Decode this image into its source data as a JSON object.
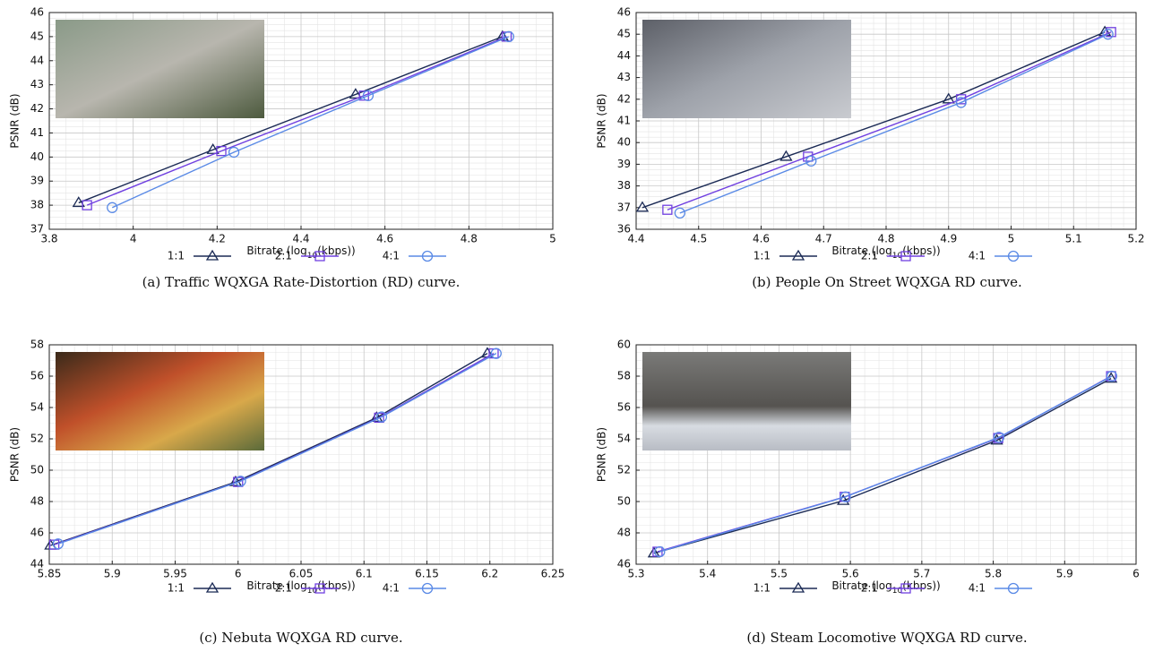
{
  "chart_data": [
    {
      "type": "line",
      "caption": "(a) Traffic WQXGA Rate-Distortion (RD) curve.",
      "x_label": [
        "Bitrate (log",
        "10",
        "(kbps))"
      ],
      "y_label": "PSNR (dB)",
      "xlim": [
        3.8,
        5
      ],
      "xticks": [
        3.8,
        4,
        4.2,
        4.4,
        4.6,
        4.8,
        5
      ],
      "ylim": [
        37,
        46
      ],
      "yticks": [
        37,
        38,
        39,
        40,
        41,
        42,
        43,
        44,
        45,
        46
      ],
      "grid": true,
      "series": [
        {
          "name": "1:1",
          "color": "#1b2a55",
          "marker": "triangle",
          "x": [
            3.87,
            4.19,
            4.53,
            4.88
          ],
          "values": [
            38.1,
            40.3,
            42.6,
            45.0
          ]
        },
        {
          "name": "2:1",
          "color": "#7040e0",
          "marker": "square",
          "x": [
            3.89,
            4.21,
            4.55,
            4.89
          ],
          "values": [
            38.0,
            40.25,
            42.55,
            45.0
          ]
        },
        {
          "name": "4:1",
          "color": "#5a8ae6",
          "marker": "circle",
          "x": [
            3.95,
            4.24,
            4.56,
            4.895
          ],
          "values": [
            37.9,
            40.2,
            42.55,
            45.0
          ]
        }
      ]
    },
    {
      "type": "line",
      "caption": "(b) People On Street WQXGA RD curve.",
      "x_label": [
        "Bitrate (log",
        "10",
        "(kbps))"
      ],
      "y_label": "PSNR (dB)",
      "xlim": [
        4.4,
        5.2
      ],
      "xticks": [
        4.4,
        4.5,
        4.6,
        4.7,
        4.8,
        4.9,
        5,
        5.1,
        5.2
      ],
      "ylim": [
        36,
        46
      ],
      "yticks": [
        36,
        37,
        38,
        39,
        40,
        41,
        42,
        43,
        44,
        45,
        46
      ],
      "grid": true,
      "series": [
        {
          "name": "1:1",
          "color": "#1b2a55",
          "marker": "triangle",
          "x": [
            4.41,
            4.64,
            4.9,
            5.15
          ],
          "values": [
            37.0,
            39.35,
            42.0,
            45.1
          ]
        },
        {
          "name": "2:1",
          "color": "#7040e0",
          "marker": "square",
          "x": [
            4.45,
            4.675,
            4.92,
            5.16
          ],
          "values": [
            36.9,
            39.35,
            42.0,
            45.1
          ]
        },
        {
          "name": "4:1",
          "color": "#5a8ae6",
          "marker": "circle",
          "x": [
            4.47,
            4.68,
            4.92,
            5.155
          ],
          "values": [
            36.75,
            39.15,
            41.85,
            45.0
          ]
        }
      ]
    },
    {
      "type": "line",
      "caption": "(c) Nebuta WQXGA RD curve.",
      "x_label": [
        "Bitrate (log",
        "10",
        "(kbps))"
      ],
      "y_label": "PSNR (dB)",
      "xlim": [
        5.85,
        6.25
      ],
      "xticks": [
        5.85,
        5.9,
        5.95,
        6,
        6.05,
        6.1,
        6.15,
        6.2,
        6.25
      ],
      "ylim": [
        44,
        58
      ],
      "yticks": [
        44,
        46,
        48,
        50,
        52,
        54,
        56,
        58
      ],
      "grid": true,
      "series": [
        {
          "name": "1:1",
          "color": "#1b2a55",
          "marker": "triangle",
          "x": [
            5.851,
            5.998,
            6.11,
            6.198
          ],
          "values": [
            45.2,
            49.25,
            53.35,
            57.45
          ]
        },
        {
          "name": "2:1",
          "color": "#7040e0",
          "marker": "square",
          "x": [
            5.854,
            6.0,
            6.112,
            6.203
          ],
          "values": [
            45.25,
            49.25,
            53.35,
            57.45
          ]
        },
        {
          "name": "4:1",
          "color": "#5a8ae6",
          "marker": "circle",
          "x": [
            5.857,
            6.002,
            6.114,
            6.205
          ],
          "values": [
            45.3,
            49.3,
            53.4,
            57.45
          ]
        }
      ]
    },
    {
      "type": "line",
      "caption": "(d) Steam Locomotive WQXGA RD curve.",
      "x_label": [
        "Bitrate (log",
        "10",
        "(kbps))"
      ],
      "y_label": "PSNR (dB)",
      "xlim": [
        5.3,
        6
      ],
      "xticks": [
        5.3,
        5.4,
        5.5,
        5.6,
        5.7,
        5.8,
        5.9,
        6
      ],
      "ylim": [
        46,
        60
      ],
      "yticks": [
        46,
        48,
        50,
        52,
        54,
        56,
        58,
        60
      ],
      "grid": true,
      "series": [
        {
          "name": "1:1",
          "color": "#1b2a55",
          "marker": "triangle",
          "x": [
            5.325,
            5.59,
            5.805,
            5.965
          ],
          "values": [
            46.7,
            50.05,
            53.9,
            57.85
          ]
        },
        {
          "name": "2:1",
          "color": "#7040e0",
          "marker": "square",
          "x": [
            5.33,
            5.592,
            5.807,
            5.965
          ],
          "values": [
            46.8,
            50.3,
            54.05,
            58.0
          ]
        },
        {
          "name": "4:1",
          "color": "#5a8ae6",
          "marker": "circle",
          "x": [
            5.333,
            5.593,
            5.808,
            5.966
          ],
          "values": [
            46.8,
            50.3,
            54.1,
            58.0
          ]
        }
      ]
    }
  ]
}
